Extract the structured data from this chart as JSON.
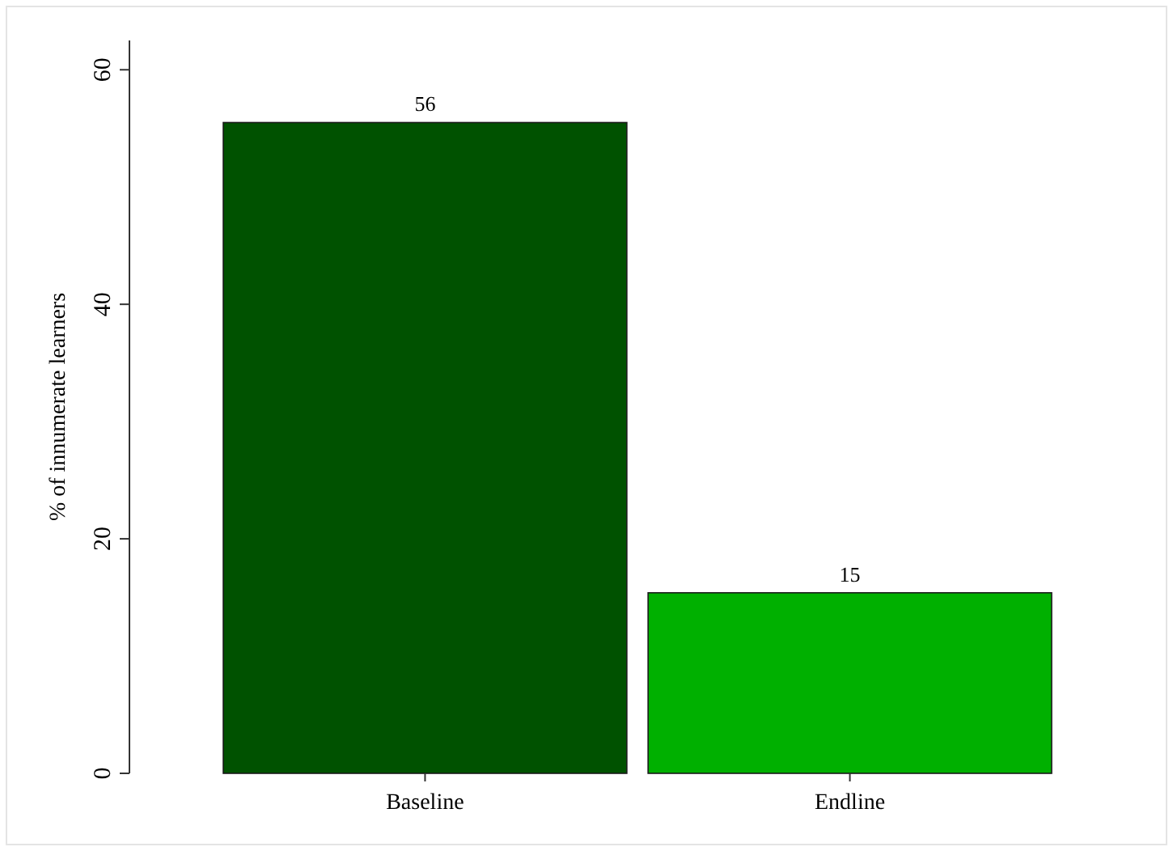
{
  "chart_data": {
    "type": "bar",
    "ylabel": "% of innumerate learners",
    "categories": [
      "Baseline",
      "Endline"
    ],
    "values": [
      55.5,
      15.4
    ],
    "colors": [
      "#005200",
      "#00b000"
    ],
    "value_labels": [
      "56",
      "15"
    ],
    "ylim": [
      0,
      62.5
    ],
    "yticks": [
      0,
      20,
      40,
      60
    ],
    "grid": false
  }
}
